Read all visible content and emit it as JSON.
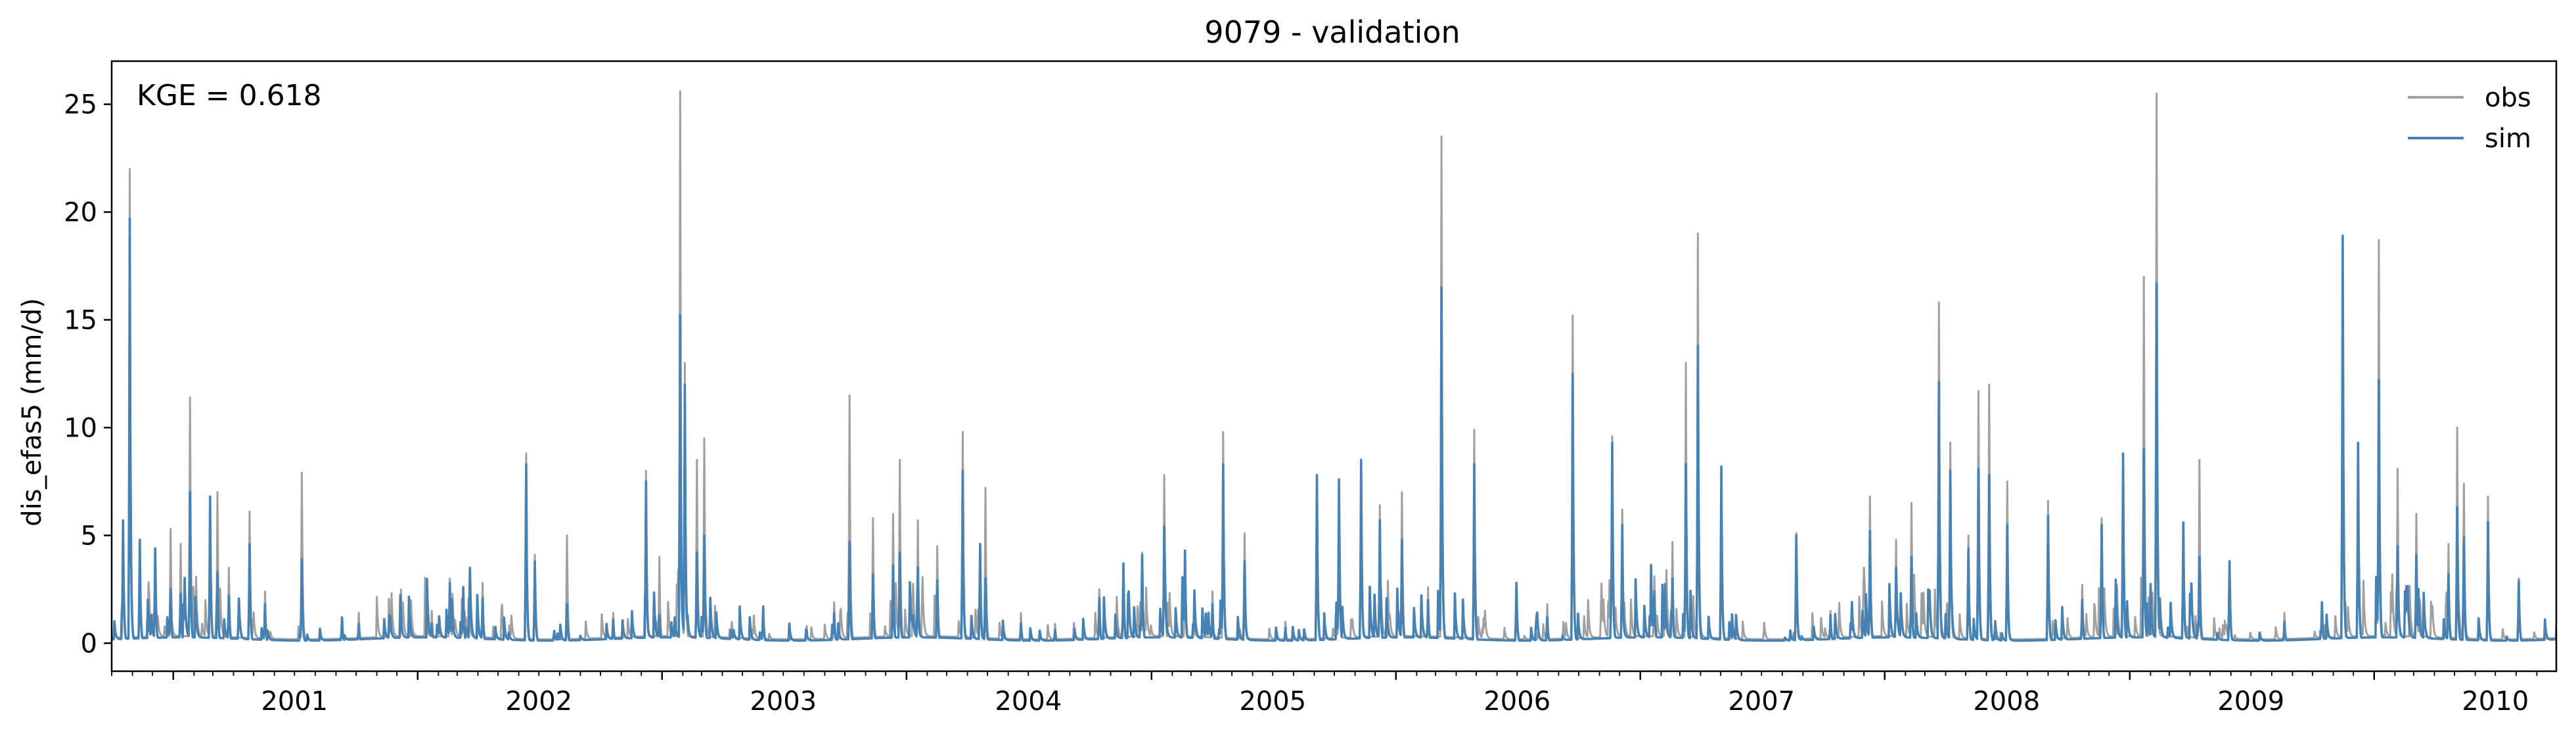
{
  "chart_data": {
    "type": "line",
    "title": "9079 - validation",
    "ylabel": "dis_efas5 (mm/d)",
    "xlabel": "",
    "annotation": "KGE = 0.618",
    "x_range": [
      "2000-10-01",
      "2010-09-30"
    ],
    "ylim": [
      -1.3,
      27
    ],
    "y_ticks": [
      0,
      5,
      10,
      15,
      20,
      25
    ],
    "x_ticks": [
      "2001",
      "2002",
      "2003",
      "2004",
      "2005",
      "2006",
      "2007",
      "2008",
      "2009",
      "2010"
    ],
    "grid": false,
    "legend": "top-right",
    "series": [
      {
        "name": "obs",
        "color": "#a0a0a0",
        "peaks": [
          [
            "2000-10-18",
            5.5
          ],
          [
            "2000-10-28",
            22
          ],
          [
            "2000-11-12",
            3.2
          ],
          [
            "2000-12-05",
            4.2
          ],
          [
            "2000-12-28",
            5.3
          ],
          [
            "2001-01-12",
            4.6
          ],
          [
            "2001-01-26",
            11.4
          ],
          [
            "2001-02-25",
            6.8
          ],
          [
            "2001-03-08",
            7.0
          ],
          [
            "2001-03-25",
            3.5
          ],
          [
            "2001-04-25",
            6.1
          ],
          [
            "2001-05-18",
            2.4
          ],
          [
            "2001-07-12",
            7.9
          ],
          [
            "2001-09-10",
            0.9
          ],
          [
            "2001-10-05",
            1.4
          ],
          [
            "2001-11-20",
            1.0
          ],
          [
            "2002-01-22",
            1.5
          ],
          [
            "2002-02-18",
            3.0
          ],
          [
            "2002-03-10",
            2.4
          ],
          [
            "2002-04-08",
            2.8
          ],
          [
            "2002-06-12",
            8.8
          ],
          [
            "2002-06-25",
            4.1
          ],
          [
            "2002-08-12",
            5.0
          ],
          [
            "2002-10-20",
            1.4
          ],
          [
            "2002-12-08",
            8.0
          ],
          [
            "2002-12-28",
            4.0
          ],
          [
            "2003-01-28",
            25.6
          ],
          [
            "2003-02-04",
            13.0
          ],
          [
            "2003-02-22",
            8.5
          ],
          [
            "2003-03-05",
            9.5
          ],
          [
            "2003-06-01",
            1.6
          ],
          [
            "2003-08-05",
            0.8
          ],
          [
            "2003-09-15",
            1.9
          ],
          [
            "2003-10-08",
            11.5
          ],
          [
            "2003-11-12",
            5.8
          ],
          [
            "2003-12-12",
            6.0
          ],
          [
            "2003-12-22",
            8.5
          ],
          [
            "2004-01-18",
            5.7
          ],
          [
            "2004-02-16",
            4.5
          ],
          [
            "2004-03-25",
            9.8
          ],
          [
            "2004-04-20",
            3.6
          ],
          [
            "2004-04-28",
            7.2
          ],
          [
            "2004-06-20",
            1.4
          ],
          [
            "2004-08-10",
            0.9
          ],
          [
            "2004-10-15",
            2.5
          ],
          [
            "2004-11-20",
            3.6
          ],
          [
            "2004-12-18",
            4.2
          ],
          [
            "2005-01-20",
            7.8
          ],
          [
            "2005-02-20",
            3.5
          ],
          [
            "2005-04-02",
            2.4
          ],
          [
            "2005-04-18",
            9.8
          ],
          [
            "2005-05-20",
            5.1
          ],
          [
            "2005-07-20",
            1.0
          ],
          [
            "2005-09-05",
            7.8
          ],
          [
            "2005-10-08",
            7.6
          ],
          [
            "2005-11-10",
            8.5
          ],
          [
            "2005-12-08",
            6.4
          ],
          [
            "2006-01-10",
            7.0
          ],
          [
            "2006-02-18",
            2.6
          ],
          [
            "2006-03-10",
            23.5
          ],
          [
            "2006-04-28",
            9.9
          ],
          [
            "2006-06-30",
            2.8
          ],
          [
            "2006-08-15",
            1.8
          ],
          [
            "2006-09-22",
            15.2
          ],
          [
            "2006-11-20",
            9.6
          ],
          [
            "2006-12-05",
            6.2
          ],
          [
            "2007-01-22",
            3.1
          ],
          [
            "2007-02-18",
            4.7
          ],
          [
            "2007-03-10",
            13.0
          ],
          [
            "2007-03-28",
            19.0
          ],
          [
            "2007-05-02",
            8.2
          ],
          [
            "2007-08-22",
            5.1
          ],
          [
            "2007-10-12",
            1.5
          ],
          [
            "2007-12-10",
            6.8
          ],
          [
            "2008-01-18",
            4.8
          ],
          [
            "2008-02-10",
            6.5
          ],
          [
            "2008-03-22",
            15.8
          ],
          [
            "2008-04-08",
            9.3
          ],
          [
            "2008-05-05",
            5.0
          ],
          [
            "2008-05-20",
            11.7
          ],
          [
            "2008-06-05",
            12.0
          ],
          [
            "2008-07-02",
            7.5
          ],
          [
            "2008-09-01",
            6.6
          ],
          [
            "2008-10-22",
            2.7
          ],
          [
            "2008-11-20",
            5.8
          ],
          [
            "2008-12-22",
            8.5
          ],
          [
            "2009-01-22",
            17.0
          ],
          [
            "2009-02-10",
            25.5
          ],
          [
            "2009-03-22",
            5.5
          ],
          [
            "2009-04-15",
            8.5
          ],
          [
            "2009-05-30",
            3.5
          ],
          [
            "2009-08-20",
            1.4
          ],
          [
            "2009-10-15",
            1.5
          ],
          [
            "2009-11-15",
            18.8
          ],
          [
            "2009-12-08",
            9.2
          ],
          [
            "2010-01-08",
            18.7
          ],
          [
            "2010-02-05",
            8.1
          ],
          [
            "2010-03-05",
            6.0
          ],
          [
            "2010-04-22",
            4.6
          ],
          [
            "2010-05-05",
            10.0
          ],
          [
            "2010-05-15",
            7.4
          ],
          [
            "2010-06-20",
            6.8
          ],
          [
            "2010-08-05",
            3.0
          ]
        ]
      },
      {
        "name": "sim",
        "color": "#4682b4",
        "peaks": [
          [
            "2000-10-18",
            5.7
          ],
          [
            "2000-10-28",
            19.7
          ],
          [
            "2000-11-12",
            4.8
          ],
          [
            "2000-12-05",
            4.4
          ],
          [
            "2000-12-28",
            2.5
          ],
          [
            "2001-01-12",
            2.3
          ],
          [
            "2001-01-26",
            7.0
          ],
          [
            "2001-02-25",
            6.8
          ],
          [
            "2001-03-08",
            3.3
          ],
          [
            "2001-03-25",
            2.2
          ],
          [
            "2001-04-25",
            4.6
          ],
          [
            "2001-05-18",
            1.8
          ],
          [
            "2001-07-12",
            3.9
          ],
          [
            "2001-09-10",
            1.2
          ],
          [
            "2001-10-05",
            0.9
          ],
          [
            "2001-11-20",
            1.3
          ],
          [
            "2002-01-22",
            0.9
          ],
          [
            "2002-02-18",
            2.8
          ],
          [
            "2002-03-10",
            2.6
          ],
          [
            "2002-04-08",
            2.1
          ],
          [
            "2002-06-12",
            8.3
          ],
          [
            "2002-06-25",
            3.8
          ],
          [
            "2002-08-12",
            1.8
          ],
          [
            "2002-10-20",
            1.1
          ],
          [
            "2002-12-08",
            7.5
          ],
          [
            "2002-12-28",
            1.3
          ],
          [
            "2003-01-28",
            15.2
          ],
          [
            "2003-02-04",
            12.0
          ],
          [
            "2003-02-22",
            4.2
          ],
          [
            "2003-03-05",
            5.0
          ],
          [
            "2003-06-01",
            1.7
          ],
          [
            "2003-08-05",
            0.6
          ],
          [
            "2003-09-15",
            1.4
          ],
          [
            "2003-10-08",
            4.7
          ],
          [
            "2003-11-12",
            3.2
          ],
          [
            "2003-12-12",
            3.6
          ],
          [
            "2003-12-22",
            4.2
          ],
          [
            "2004-01-18",
            3.5
          ],
          [
            "2004-02-16",
            2.9
          ],
          [
            "2004-03-25",
            8.0
          ],
          [
            "2004-04-20",
            4.6
          ],
          [
            "2004-04-28",
            3.0
          ],
          [
            "2004-06-20",
            0.9
          ],
          [
            "2004-08-10",
            0.6
          ],
          [
            "2004-10-15",
            2.1
          ],
          [
            "2004-11-20",
            3.7
          ],
          [
            "2004-12-18",
            4.1
          ],
          [
            "2005-01-20",
            5.4
          ],
          [
            "2005-02-20",
            4.3
          ],
          [
            "2005-04-02",
            1.8
          ],
          [
            "2005-04-18",
            8.3
          ],
          [
            "2005-05-20",
            3.8
          ],
          [
            "2005-07-20",
            0.7
          ],
          [
            "2005-09-05",
            7.8
          ],
          [
            "2005-10-08",
            7.6
          ],
          [
            "2005-11-10",
            8.5
          ],
          [
            "2005-12-08",
            5.7
          ],
          [
            "2006-01-10",
            4.8
          ],
          [
            "2006-02-18",
            2.0
          ],
          [
            "2006-03-10",
            16.5
          ],
          [
            "2006-04-28",
            8.3
          ],
          [
            "2006-06-30",
            2.8
          ],
          [
            "2006-08-15",
            1.2
          ],
          [
            "2006-09-22",
            12.5
          ],
          [
            "2006-11-20",
            9.3
          ],
          [
            "2006-12-05",
            5.5
          ],
          [
            "2007-01-22",
            2.4
          ],
          [
            "2007-02-18",
            3.0
          ],
          [
            "2007-03-10",
            8.3
          ],
          [
            "2007-03-28",
            13.8
          ],
          [
            "2007-05-02",
            8.2
          ],
          [
            "2007-08-22",
            5.0
          ],
          [
            "2007-10-12",
            1.3
          ],
          [
            "2007-12-10",
            5.2
          ],
          [
            "2008-01-18",
            3.5
          ],
          [
            "2008-02-10",
            4.0
          ],
          [
            "2008-03-22",
            12.1
          ],
          [
            "2008-04-08",
            8.0
          ],
          [
            "2008-05-05",
            4.4
          ],
          [
            "2008-05-20",
            8.1
          ],
          [
            "2008-06-05",
            7.8
          ],
          [
            "2008-07-02",
            5.5
          ],
          [
            "2008-09-01",
            5.9
          ],
          [
            "2008-10-22",
            2.0
          ],
          [
            "2008-11-20",
            5.5
          ],
          [
            "2008-12-22",
            8.8
          ],
          [
            "2009-01-22",
            9.0
          ],
          [
            "2009-02-10",
            16.7
          ],
          [
            "2009-03-22",
            5.6
          ],
          [
            "2009-04-15",
            4.0
          ],
          [
            "2009-05-30",
            3.8
          ],
          [
            "2009-08-20",
            1.0
          ],
          [
            "2009-10-15",
            1.9
          ],
          [
            "2009-11-15",
            18.9
          ],
          [
            "2009-12-08",
            9.3
          ],
          [
            "2010-01-08",
            12.2
          ],
          [
            "2010-02-05",
            4.5
          ],
          [
            "2010-03-05",
            4.1
          ],
          [
            "2010-04-22",
            3.2
          ],
          [
            "2010-05-05",
            6.3
          ],
          [
            "2010-05-15",
            4.9
          ],
          [
            "2010-06-20",
            5.6
          ],
          [
            "2010-08-05",
            2.9
          ]
        ]
      }
    ]
  }
}
